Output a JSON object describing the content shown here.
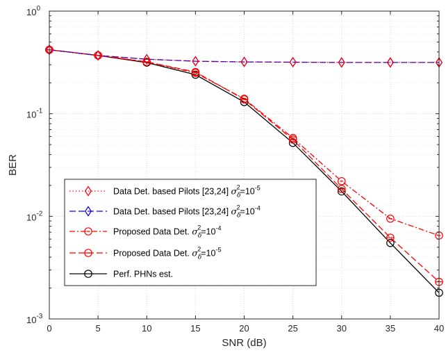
{
  "chart_data": {
    "type": "line",
    "xlabel": "SNR (dB)",
    "ylabel": "BER",
    "xlim": [
      0,
      40
    ],
    "ylim": [
      0.001,
      1
    ],
    "yscale": "log",
    "grid": true,
    "legend_position": "bottom-left",
    "x_ticks": [
      0,
      5,
      10,
      15,
      20,
      25,
      30,
      35,
      40
    ],
    "x_tick_labels": [
      "0",
      "5",
      "10",
      "15",
      "20",
      "25",
      "30",
      "35",
      "40"
    ],
    "y_ticks": [
      {
        "value": 0.001,
        "base": "10",
        "exp": "-3"
      },
      {
        "value": 0.01,
        "base": "10",
        "exp": "-2"
      },
      {
        "value": 0.1,
        "base": "10",
        "exp": "-1"
      },
      {
        "value": 1,
        "base": "10",
        "exp": "0"
      }
    ],
    "x": [
      0,
      5,
      10,
      15,
      20,
      25,
      30,
      35,
      40
    ],
    "series": [
      {
        "label_main": "Data Det. based Pilots [23,24] ",
        "label_suffix": "=10",
        "label_exp": "-5",
        "color": "#ff0000",
        "marker": "diamond",
        "dash": "1.5 3",
        "values": [
          0.42,
          0.37,
          0.34,
          0.325,
          0.32,
          0.318,
          0.316,
          0.316,
          0.316
        ]
      },
      {
        "label_main": "Data Det. based Pilots [23,24] ",
        "label_suffix": "=10",
        "label_exp": "-4",
        "color": "#0000ff",
        "marker": "diamond",
        "dash": "9 4",
        "values": [
          0.42,
          0.37,
          0.34,
          0.325,
          0.32,
          0.318,
          0.316,
          0.316,
          0.316
        ]
      },
      {
        "label_main": "Proposed Data Det. ",
        "label_suffix": "=10",
        "label_exp": "-4",
        "color": "#ff0000",
        "marker": "circle-dot",
        "dash": "8 3 2 3",
        "values": [
          0.42,
          0.37,
          0.32,
          0.25,
          0.14,
          0.058,
          0.022,
          0.0095,
          0.0065
        ]
      },
      {
        "label_main": "Proposed Data Det. ",
        "label_suffix": "=10",
        "label_exp": "-5",
        "color": "#ff0000",
        "marker": "circle-line",
        "dash": "9 4",
        "values": [
          0.42,
          0.37,
          0.32,
          0.255,
          0.138,
          0.056,
          0.0185,
          0.0062,
          0.0023
        ]
      },
      {
        "label_main": "Perf. PHNs est.",
        "label_suffix": "",
        "label_exp": "",
        "color": "#000000",
        "marker": "circle",
        "dash": "",
        "values": [
          0.42,
          0.37,
          0.315,
          0.24,
          0.13,
          0.052,
          0.0175,
          0.0055,
          0.0018
        ]
      }
    ]
  }
}
